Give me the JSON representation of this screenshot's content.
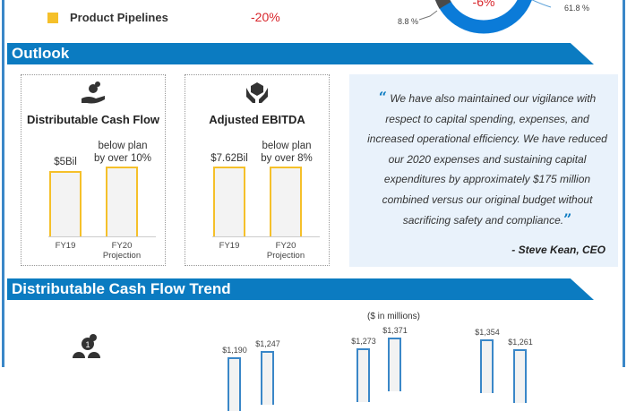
{
  "legend": {
    "label": "Product Pipelines",
    "value": "-20%",
    "color": "#f5c02a"
  },
  "donut": {
    "center_label": "-6%",
    "labels": [
      "8.8 %",
      "61.8 %"
    ],
    "colors": [
      "#0b7bd8",
      "#4a4a4a"
    ]
  },
  "outlook": {
    "title": "Outlook",
    "cards": [
      {
        "title": "Distributable Cash Flow",
        "icon": "hand-coins-icon",
        "bars": [
          {
            "x": "FY19",
            "label": "$5Bil"
          },
          {
            "x": "FY20 Projection",
            "label": "below plan by over 10%"
          }
        ]
      },
      {
        "title": "Adjusted EBITDA",
        "icon": "hands-box-icon",
        "bars": [
          {
            "x": "FY19",
            "label": "$7.62Bil"
          },
          {
            "x": "FY20 Projection",
            "label": "below plan by over 8%"
          }
        ]
      }
    ],
    "quote": "We have also maintained our vigilance with respect to capital spending, expenses, and increased operational efficiency. We have reduced our 2020 expenses and sustaining capital expenditures by approximately $175 million combined versus our original budget without sacrificing safety and compliance.",
    "author": "- Steve Kean, CEO"
  },
  "trend": {
    "title": "Distributable Cash Flow Trend",
    "unit": "($ in millions)"
  },
  "chart_data": {
    "type": "bar",
    "ylabel": "($ in millions)",
    "values": [
      1190,
      1247,
      1273,
      1371,
      1354,
      1261
    ],
    "labels": [
      "$1,190",
      "$1,247",
      "$1,273",
      "$1,371",
      "$1,354",
      "$1,261"
    ]
  }
}
